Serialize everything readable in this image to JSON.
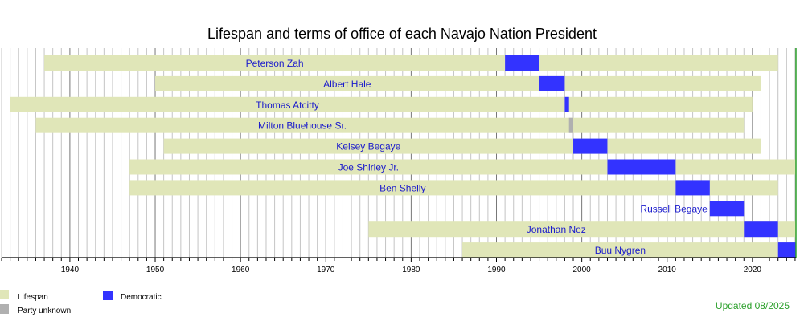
{
  "chart_data": {
    "type": "timeline",
    "title": "Lifespan and terms of office of each Navajo Nation President",
    "xlim": [
      1932,
      2025.1
    ],
    "x_ticks": [
      "1940",
      "1950",
      "1960",
      "1970",
      "1980",
      "1990",
      "2000",
      "2010",
      "2020"
    ],
    "grid": "vertical, yearly",
    "current_year": 2025.1,
    "colors": {
      "lifespan": "#e0e6b8",
      "Democratic": "#3333ff",
      "Party unknown": "#b0b0b0",
      "label": "#1a1acc",
      "updated": "#2ca02c"
    },
    "legend": {
      "placement": "bottom-left",
      "entries": [
        {
          "key": "lifespan",
          "label": "Lifespan"
        },
        {
          "key": "Party unknown",
          "label": "Party unknown"
        },
        {
          "key": "Democratic",
          "label": "Democratic"
        }
      ]
    },
    "series": [
      {
        "name": "Peterson Zah",
        "born": 1937,
        "died": 2023,
        "term": [
          1991,
          1995
        ],
        "party": "Democratic"
      },
      {
        "name": "Albert Hale",
        "born": 1950,
        "died": 2021,
        "term": [
          1995,
          1998
        ],
        "party": "Democratic"
      },
      {
        "name": "Thomas Atcitty",
        "born": 1933,
        "died": 2020,
        "term": [
          1998,
          1998.5
        ],
        "party": "Democratic"
      },
      {
        "name": "Milton Bluehouse Sr.",
        "born": 1936,
        "died": 2019,
        "term": [
          1998.5,
          1999
        ],
        "party": "Party unknown"
      },
      {
        "name": "Kelsey Begaye",
        "born": 1951,
        "died": 2021,
        "term": [
          1999,
          2003
        ],
        "party": "Democratic"
      },
      {
        "name": "Joe Shirley Jr.",
        "born": 1947,
        "died": null,
        "term": [
          2003,
          2011
        ],
        "party": "Democratic"
      },
      {
        "name": "Ben Shelly",
        "born": 1947,
        "died": 2023,
        "term": [
          2011,
          2015
        ],
        "party": "Democratic"
      },
      {
        "name": "Russell Begaye",
        "born": null,
        "died": null,
        "term": [
          2015,
          2019
        ],
        "party": "Democratic"
      },
      {
        "name": "Jonathan Nez",
        "born": 1975,
        "died": null,
        "term": [
          2019,
          2023
        ],
        "party": "Democratic"
      },
      {
        "name": "Buu Nygren",
        "born": 1986,
        "died": null,
        "term": [
          2023,
          2025.1
        ],
        "party": "Democratic"
      }
    ],
    "footnote": "Updated 08/2025"
  }
}
